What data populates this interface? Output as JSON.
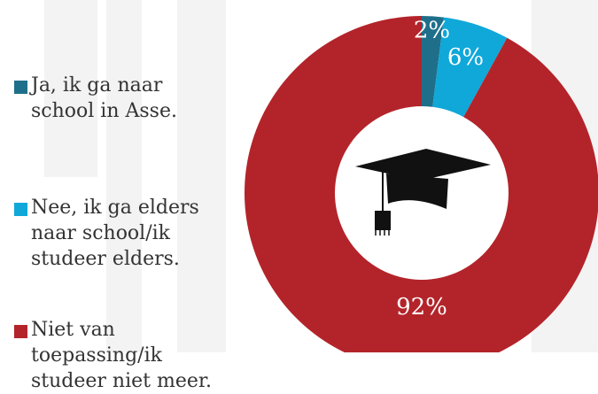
{
  "chart_data": {
    "type": "pie",
    "donut": true,
    "categories": [
      "Ja, ik ga naar\nschool in Asse.",
      "Nee, ik ga elders\nnaar school/ik\nstudeer elders.",
      "Niet van\ntoepassing/ik\nstudeer niet meer."
    ],
    "values": [
      2,
      6,
      92
    ],
    "labels": [
      "2%",
      "6%",
      "92%"
    ],
    "colors": [
      "#1f6f8b",
      "#0fa8d9",
      "#b3242a"
    ],
    "legend_position": "left",
    "center_icon": "graduation-cap-icon"
  }
}
